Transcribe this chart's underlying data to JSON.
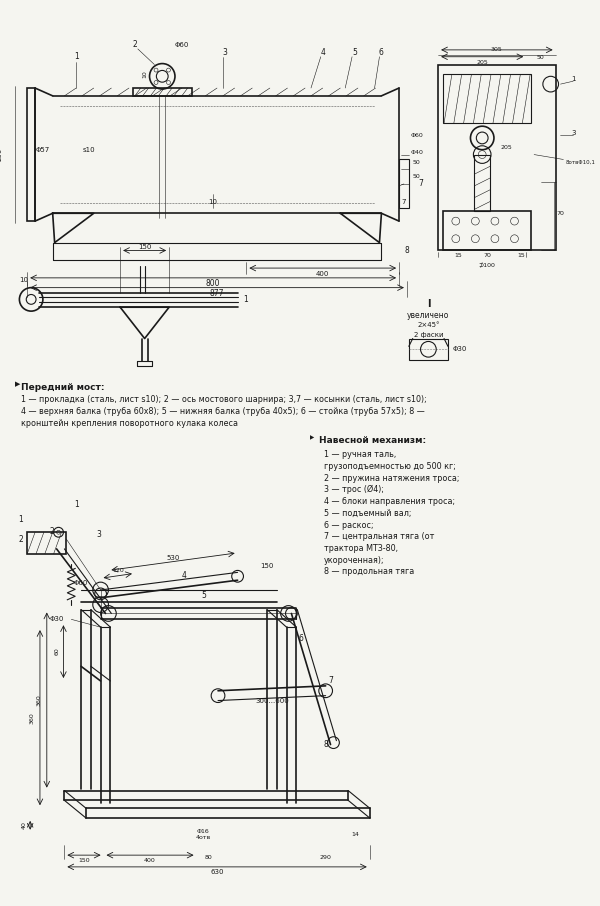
{
  "background_color": "#f5f5f0",
  "drawing_color": "#1a1a1a",
  "lw": 0.8,
  "lw_thin": 0.4,
  "lw_thick": 1.2,
  "section1_label": "Передний мост:",
  "section1_text1": "1 — прокладка (сталь, лист s10); 2 — ось мостового шарнира; 3,7 — косынки (сталь, лист s10);",
  "section1_text2": "4 — верхняя балка (труба 60x8); 5 — нижняя балка (труба 40x5); 6 — стойка (труба 57x5); 8 —",
  "section1_text3": "кронштейн крепления поворотного кулака колеса",
  "section2_label": "Навесной механизм:",
  "section2_items": [
    "1 — ручная таль,",
    "грузоподъемностью до 500 кг;",
    "2 — пружина натяжения троса;",
    "3 — трос (Ø4);",
    "4 — блоки направления троса;",
    "5 — подъемный вал;",
    "6 — раскос;",
    "7 — центральная тяга (от",
    "трактора МТЗ-80,",
    "укороченная);",
    "8 — продольная тяга"
  ]
}
